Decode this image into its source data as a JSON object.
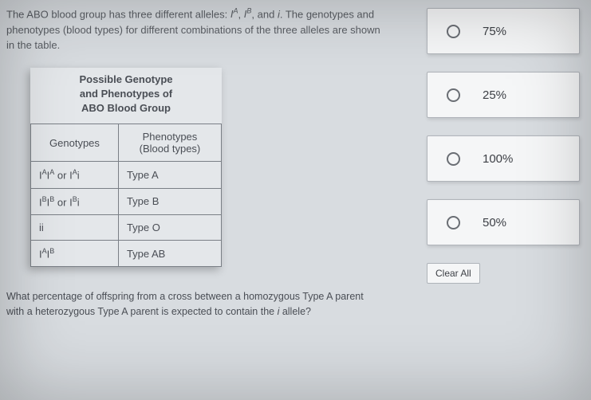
{
  "intro": {
    "line1_a": "The ABO blood group has three different alleles: ",
    "line1_b": ", and ",
    "line1_c": ". The genotypes and",
    "line2": "phenotypes (blood types) for different combinations of the three alleles are shown",
    "line3": "in the table.",
    "allele_A": "I",
    "allele_A_sup": "A",
    "allele_B": "I",
    "allele_B_sup": "B",
    "allele_i": "i"
  },
  "table": {
    "title_l1": "Possible Genotype",
    "title_l2": "and Phenotypes of",
    "title_l3": "ABO Blood Group",
    "header_geno": "Genotypes",
    "header_pheno_l1": "Phenotypes",
    "header_pheno_l2": "(Blood types)",
    "rows": [
      {
        "geno_html": "I<sup>A</sup>I<sup>A</sup> or I<sup>A</sup>i",
        "pheno": "Type A"
      },
      {
        "geno_html": "I<sup>B</sup>I<sup>B</sup> or I<sup>B</sup>i",
        "pheno": "Type B"
      },
      {
        "geno_html": "ii",
        "pheno": "Type O"
      },
      {
        "geno_html": "I<sup>A</sup>I<sup>B</sup>",
        "pheno": "Type AB"
      }
    ]
  },
  "question": {
    "l1": "What percentage of offspring from a cross between a homozygous Type A parent",
    "l2_a": "with a heterozygous Type A parent is expected to contain the ",
    "l2_b": " allele?",
    "allele_i": "i"
  },
  "options": [
    {
      "label": "75%"
    },
    {
      "label": "25%"
    },
    {
      "label": "100%"
    },
    {
      "label": "50%"
    }
  ],
  "clear_all": "Clear All"
}
